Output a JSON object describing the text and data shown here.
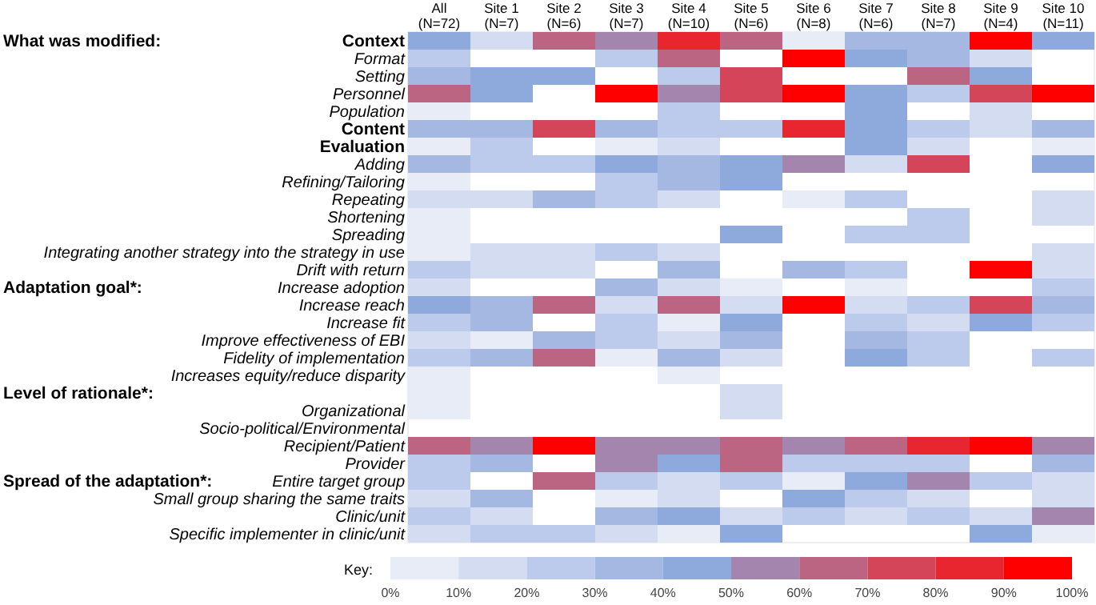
{
  "chart_data": {
    "type": "heatmap",
    "categories": [
      "All\n(N=72)",
      "Site 1\n(N=7)",
      "Site 2\n(N=6)",
      "Site 3\n(N=7)",
      "Site 4\n(N=10)",
      "Site 5\n(N=6)",
      "Site 6\n(N=8)",
      "Site 7\n(N=6)",
      "Site 8\n(N=7)",
      "Site 9\n(N=4)",
      "Site 10\n(N=11)"
    ],
    "y_categories": [
      "Context",
      "Format",
      "Setting",
      "Personnel",
      "Population",
      "Content",
      "Evaluation",
      "Adding",
      "Refining/Tailoring",
      "Repeating",
      "Shortening",
      "Spreading",
      "Integrating another strategy into the strategy in use",
      "Drift with return",
      "Increase adoption",
      "Increase reach",
      "Increase fit",
      "Improve effectiveness of EBI",
      "Fidelity of implementation",
      "Increases equity/reduce disparity",
      null,
      "Organizational",
      "Socio-political/Environmental",
      "Recipient/Patient",
      "Provider",
      "Entire target group",
      "Small group sharing the same traits",
      "Clinic/unit",
      "Specific implementer in clinic/unit"
    ],
    "cells": [
      [
        45,
        15,
        65,
        55,
        85,
        65,
        5,
        35,
        35,
        95,
        45
      ],
      [
        25,
        null,
        null,
        25,
        65,
        null,
        95,
        45,
        35,
        15,
        null
      ],
      [
        35,
        45,
        45,
        null,
        25,
        75,
        null,
        null,
        65,
        45,
        null
      ],
      [
        65,
        45,
        null,
        95,
        55,
        75,
        95,
        45,
        25,
        75,
        95
      ],
      [
        5,
        null,
        null,
        null,
        25,
        null,
        null,
        45,
        null,
        15,
        null
      ],
      [
        35,
        35,
        75,
        35,
        25,
        25,
        85,
        45,
        25,
        15,
        35
      ],
      [
        5,
        25,
        null,
        5,
        15,
        null,
        null,
        45,
        15,
        null,
        5
      ],
      [
        35,
        25,
        25,
        45,
        35,
        45,
        55,
        15,
        75,
        null,
        45
      ],
      [
        5,
        null,
        null,
        25,
        35,
        45,
        null,
        null,
        null,
        null,
        null
      ],
      [
        15,
        15,
        35,
        25,
        15,
        null,
        5,
        25,
        null,
        null,
        15
      ],
      [
        5,
        null,
        null,
        null,
        null,
        null,
        null,
        null,
        25,
        null,
        15
      ],
      [
        5,
        null,
        null,
        null,
        null,
        45,
        null,
        25,
        25,
        null,
        null
      ],
      [
        5,
        15,
        15,
        25,
        15,
        null,
        null,
        null,
        null,
        null,
        15
      ],
      [
        25,
        15,
        15,
        null,
        35,
        null,
        35,
        25,
        null,
        95,
        15
      ],
      [
        15,
        null,
        null,
        35,
        15,
        5,
        null,
        5,
        null,
        null,
        25
      ],
      [
        45,
        35,
        65,
        15,
        65,
        15,
        95,
        15,
        25,
        75,
        35
      ],
      [
        25,
        35,
        null,
        25,
        5,
        45,
        null,
        25,
        15,
        45,
        25
      ],
      [
        15,
        5,
        35,
        25,
        15,
        35,
        null,
        35,
        25,
        null,
        null
      ],
      [
        25,
        35,
        65,
        5,
        35,
        15,
        null,
        45,
        25,
        null,
        25
      ],
      [
        5,
        null,
        null,
        null,
        5,
        null,
        null,
        null,
        null,
        null,
        null
      ],
      [
        5,
        null,
        null,
        null,
        null,
        15,
        null,
        null,
        null,
        null,
        null
      ],
      [
        5,
        null,
        null,
        null,
        null,
        15,
        null,
        null,
        null,
        null,
        null
      ],
      [
        null,
        null,
        null,
        null,
        null,
        null,
        null,
        null,
        null,
        null,
        null
      ],
      [
        65,
        55,
        95,
        55,
        55,
        65,
        55,
        65,
        85,
        95,
        55
      ],
      [
        25,
        35,
        null,
        55,
        45,
        65,
        25,
        25,
        25,
        null,
        35
      ],
      [
        25,
        null,
        65,
        25,
        15,
        25,
        5,
        45,
        55,
        25,
        15
      ],
      [
        15,
        35,
        null,
        5,
        15,
        null,
        45,
        25,
        15,
        null,
        15
      ],
      [
        25,
        15,
        null,
        35,
        45,
        15,
        25,
        15,
        25,
        15,
        55
      ],
      [
        15,
        25,
        25,
        15,
        5,
        45,
        null,
        null,
        null,
        45,
        5
      ]
    ],
    "colors": [
      "#e8ecf7",
      "#d3dcf0",
      "#bccbeb",
      "#a4b8e2",
      "#8ea9db",
      "#a385ad",
      "#bc6583",
      "#d4455a",
      "#e8262f",
      "#ff0000"
    ],
    "clim": [
      0,
      100
    ],
    "cticks": [
      {
        "value": 0,
        "label": "0%"
      },
      {
        "value": 10,
        "label": "10%"
      },
      {
        "value": 20,
        "label": "20%"
      },
      {
        "value": 30,
        "label": "30%"
      },
      {
        "value": 40,
        "label": "40%"
      },
      {
        "value": 50,
        "label": "50%"
      },
      {
        "value": 60,
        "label": "60%"
      },
      {
        "value": 70,
        "label": "70%"
      },
      {
        "value": 80,
        "label": "80%"
      },
      {
        "value": 90,
        "label": "90%"
      },
      {
        "value": 100,
        "label": "100%"
      }
    ],
    "clabel": "Key:",
    "annotations": [
      "What was modified:",
      "Adaptation goal*:",
      "Level of rationale*:",
      "Spread of the adaptation*:"
    ]
  }
}
